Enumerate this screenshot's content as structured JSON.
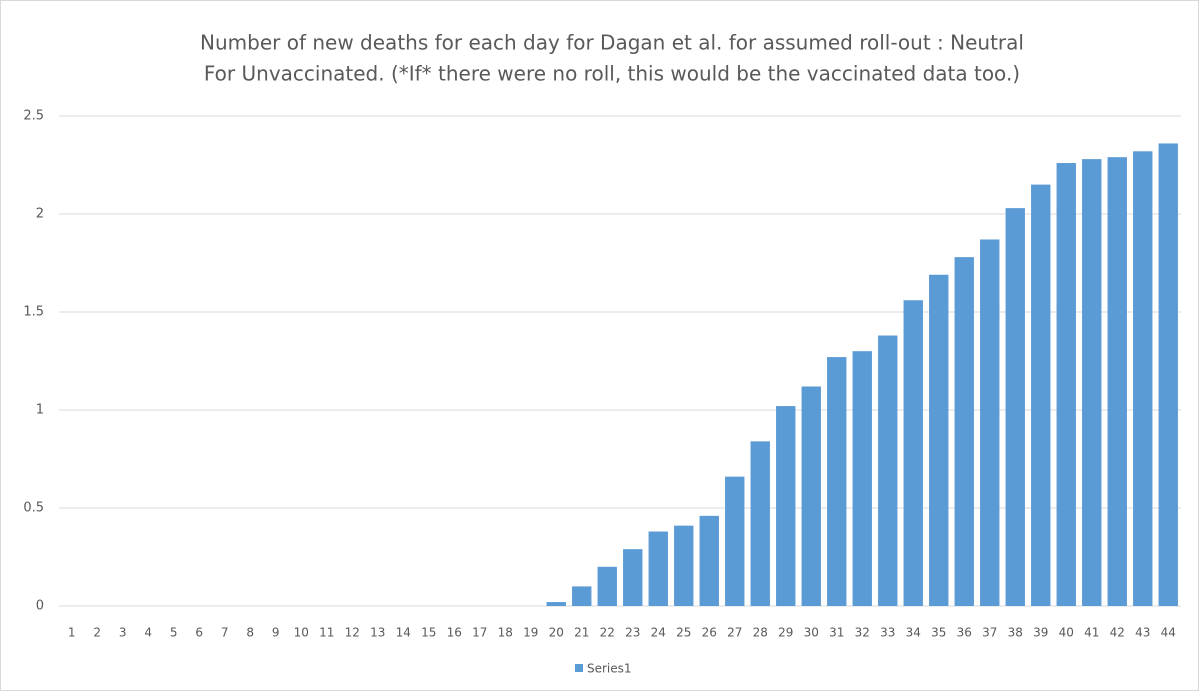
{
  "chart_data": {
    "type": "bar",
    "title": [
      "Number of new deaths for each day for Dagan et al. for assumed roll-out : Neutral",
      "For Unvaccinated. (*If* there were no roll, this would be the vaccinated data too.)"
    ],
    "categories": [
      "1",
      "2",
      "3",
      "4",
      "5",
      "6",
      "7",
      "8",
      "9",
      "10",
      "11",
      "12",
      "13",
      "14",
      "15",
      "16",
      "17",
      "18",
      "19",
      "20",
      "21",
      "22",
      "23",
      "24",
      "25",
      "26",
      "27",
      "28",
      "29",
      "30",
      "31",
      "32",
      "33",
      "34",
      "35",
      "36",
      "37",
      "38",
      "39",
      "40",
      "41",
      "42",
      "43",
      "44"
    ],
    "series": [
      {
        "name": "Series1",
        "color": "#5b9bd5",
        "values": [
          0,
          0,
          0,
          0,
          0,
          0,
          0,
          0,
          0,
          0,
          0,
          0,
          0,
          0,
          0,
          0,
          0,
          0,
          0,
          0.02,
          0.1,
          0.2,
          0.29,
          0.38,
          0.41,
          0.46,
          0.66,
          0.84,
          1.02,
          1.12,
          1.27,
          1.3,
          1.38,
          1.56,
          1.69,
          1.78,
          1.87,
          2.03,
          2.15,
          2.26,
          2.28,
          2.29,
          2.32,
          2.36
        ]
      }
    ],
    "ylim": [
      0,
      2.5
    ],
    "yticks": [
      0,
      0.5,
      1,
      1.5,
      2,
      2.5
    ],
    "grid": true,
    "legend": "bottom"
  }
}
